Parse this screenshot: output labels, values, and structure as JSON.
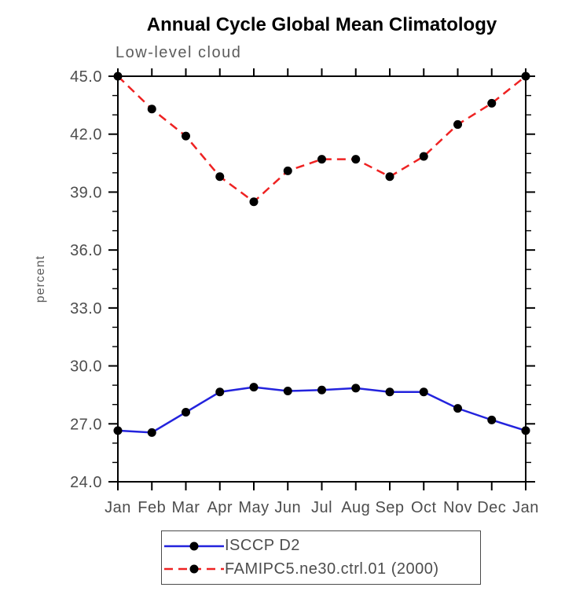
{
  "chart_data": {
    "type": "line",
    "title": "Annual Cycle Global Mean Climatology",
    "subtitle": "Low-level cloud",
    "xlabel": "",
    "ylabel": "percent",
    "ylim": [
      24.0,
      45.0
    ],
    "y_major_step": 3.0,
    "y_minor_step": 1.0,
    "y_major_ticks": [
      24.0,
      27.0,
      30.0,
      33.0,
      36.0,
      39.0,
      42.0,
      45.0
    ],
    "grid": false,
    "legend_position": "bottom",
    "marker": {
      "shape": "circle",
      "color": "#000000"
    },
    "axis_color": "#000000",
    "tick_label_color": "#4d4d4d",
    "categories": [
      "Jan",
      "Feb",
      "Mar",
      "Apr",
      "May",
      "Jun",
      "Jul",
      "Aug",
      "Sep",
      "Oct",
      "Nov",
      "Dec",
      "Jan"
    ],
    "series": [
      {
        "name": "ISCCP D2",
        "color": "#2323dd",
        "line_style": "solid",
        "dash": "",
        "values": [
          26.65,
          26.55,
          27.6,
          28.65,
          28.9,
          28.7,
          28.75,
          28.85,
          28.65,
          28.65,
          27.8,
          27.2,
          26.65
        ]
      },
      {
        "name": "FAMIPC5.ne30.ctrl.01 (2000)",
        "color": "#ee2222",
        "line_style": "dashed",
        "dash": "11,7",
        "values": [
          45.0,
          43.3,
          41.9,
          39.8,
          38.5,
          40.1,
          40.7,
          40.7,
          39.8,
          40.85,
          42.5,
          43.6,
          45.0
        ]
      }
    ]
  }
}
